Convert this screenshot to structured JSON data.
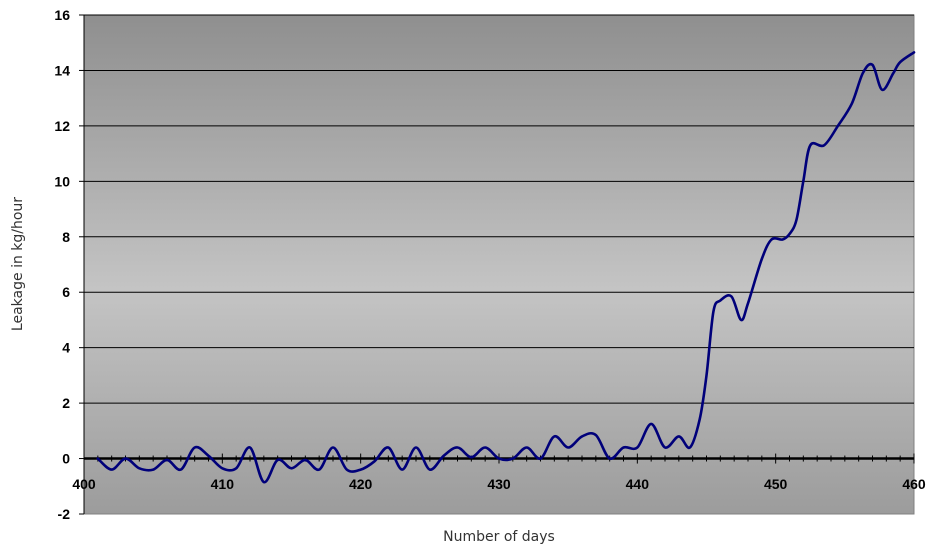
{
  "chart_data": {
    "type": "line",
    "title": "",
    "xlabel": "Number of days",
    "ylabel": "Leakage in kg/hour",
    "xlim": [
      400,
      460
    ],
    "ylim": [
      -2,
      16
    ],
    "x_ticks": [
      400,
      410,
      420,
      430,
      440,
      450,
      460
    ],
    "y_ticks": [
      -2,
      0,
      2,
      4,
      6,
      8,
      10,
      12,
      14,
      16
    ],
    "grid": "horizontal",
    "background": "gray-gradient",
    "series": [
      {
        "color": "#00007a",
        "points": [
          [
            401,
            0.0
          ],
          [
            402,
            -0.4
          ],
          [
            403,
            0.0
          ],
          [
            404,
            -0.35
          ],
          [
            405,
            -0.4
          ],
          [
            406,
            -0.05
          ],
          [
            407,
            -0.4
          ],
          [
            408,
            0.4
          ],
          [
            409,
            0.1
          ],
          [
            410,
            -0.35
          ],
          [
            411,
            -0.35
          ],
          [
            412,
            0.4
          ],
          [
            413,
            -0.85
          ],
          [
            414,
            -0.05
          ],
          [
            415,
            -0.35
          ],
          [
            416,
            -0.05
          ],
          [
            417,
            -0.4
          ],
          [
            418,
            0.4
          ],
          [
            419,
            -0.4
          ],
          [
            420,
            -0.4
          ],
          [
            421,
            -0.1
          ],
          [
            422,
            0.4
          ],
          [
            423,
            -0.4
          ],
          [
            424,
            0.4
          ],
          [
            425,
            -0.4
          ],
          [
            426,
            0.1
          ],
          [
            427,
            0.4
          ],
          [
            428,
            0.05
          ],
          [
            429,
            0.4
          ],
          [
            430,
            0.0
          ],
          [
            431,
            0.0
          ],
          [
            432,
            0.4
          ],
          [
            433,
            0.0
          ],
          [
            434,
            0.8
          ],
          [
            435,
            0.4
          ],
          [
            436,
            0.8
          ],
          [
            437,
            0.85
          ],
          [
            438,
            0.0
          ],
          [
            439,
            0.4
          ],
          [
            440,
            0.4
          ],
          [
            441,
            1.25
          ],
          [
            442,
            0.4
          ],
          [
            443,
            0.8
          ],
          [
            443.8,
            0.4
          ],
          [
            444.5,
            1.4
          ],
          [
            445,
            3.0
          ],
          [
            445.5,
            5.3
          ],
          [
            446,
            5.7
          ],
          [
            446.8,
            5.85
          ],
          [
            447.5,
            5.0
          ],
          [
            448,
            5.6
          ],
          [
            449,
            7.2
          ],
          [
            449.7,
            7.9
          ],
          [
            450.5,
            7.9
          ],
          [
            451,
            8.1
          ],
          [
            451.5,
            8.6
          ],
          [
            452,
            10.0
          ],
          [
            452.5,
            11.3
          ],
          [
            453.5,
            11.3
          ],
          [
            454.5,
            12.0
          ],
          [
            455.5,
            12.8
          ],
          [
            456.3,
            13.9
          ],
          [
            457,
            14.2
          ],
          [
            457.7,
            13.3
          ],
          [
            458.5,
            13.9
          ],
          [
            459,
            14.3
          ],
          [
            460,
            14.65
          ]
        ]
      }
    ]
  }
}
